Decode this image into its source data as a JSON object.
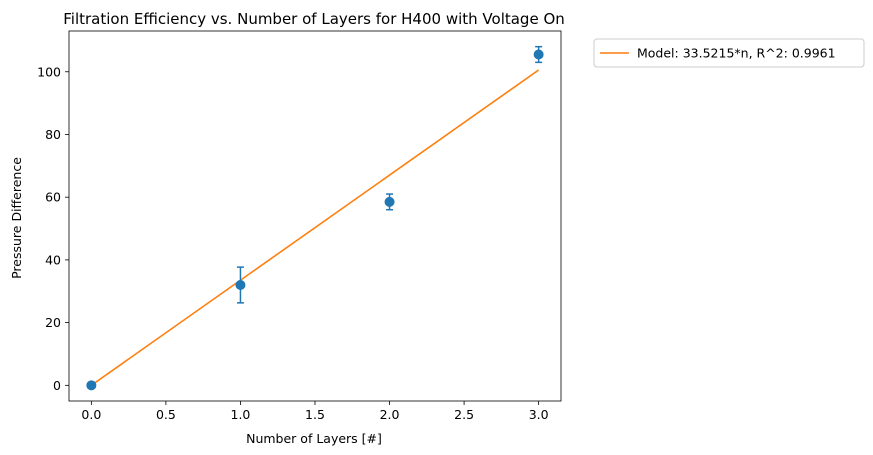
{
  "chart_data": {
    "type": "scatter",
    "title": "Filtration Efficiency vs. Number of Layers for H400 with Voltage On",
    "xlabel": "Number of Layers [#]",
    "ylabel": "Pressure Difference",
    "xlim": [
      -0.15,
      3.15
    ],
    "ylim": [
      -5,
      113
    ],
    "xticks": [
      0.0,
      0.5,
      1.0,
      1.5,
      2.0,
      2.5,
      3.0
    ],
    "xtick_labels": [
      "0.0",
      "0.5",
      "1.0",
      "1.5",
      "2.0",
      "2.5",
      "3.0"
    ],
    "yticks": [
      0,
      20,
      40,
      60,
      80,
      100
    ],
    "ytick_labels": [
      "0",
      "20",
      "40",
      "60",
      "80",
      "100"
    ],
    "grid": false,
    "legend_position": "outside-top-right",
    "series": [
      {
        "kind": "errorbar-points",
        "color": "#1f77b4",
        "x": [
          0,
          1,
          2,
          3
        ],
        "y": [
          0,
          32,
          58.5,
          105.5
        ],
        "yerr_low": [
          0,
          26.3,
          56,
          103
        ],
        "yerr_high": [
          0,
          37.7,
          61,
          108
        ]
      },
      {
        "kind": "line",
        "name": "Model: 33.5215*n, R^2: 0.9961",
        "color": "#ff7f0e",
        "x": [
          0,
          3
        ],
        "y": [
          0,
          100.5645
        ]
      }
    ]
  }
}
